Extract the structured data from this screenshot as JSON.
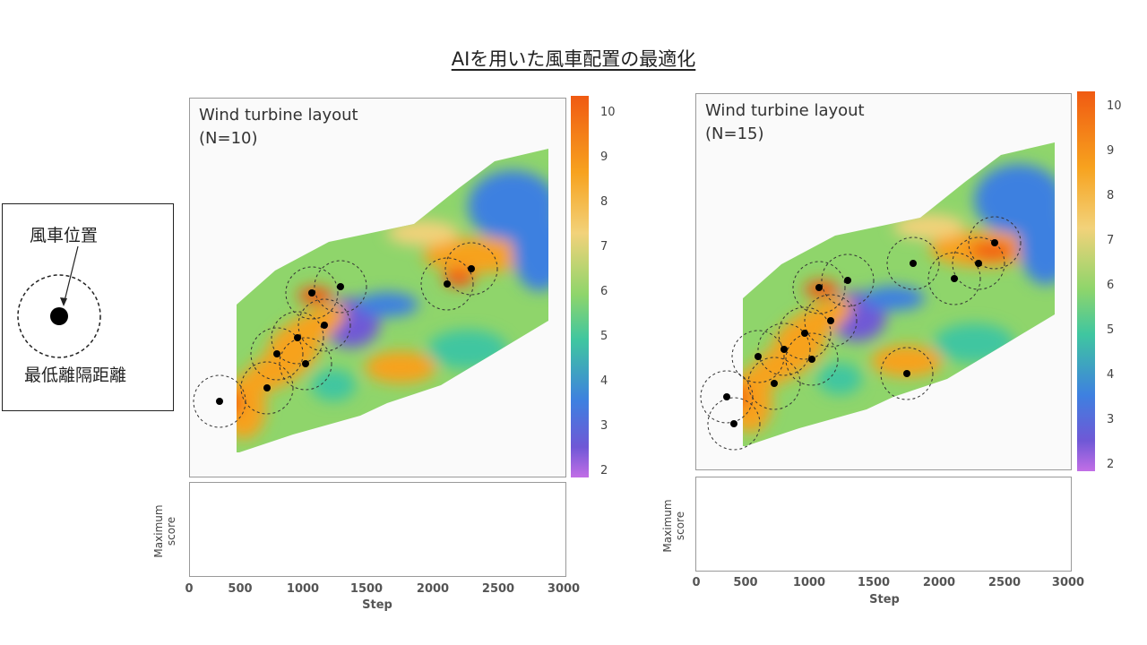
{
  "title": "AIを用いた風車配置の最適化",
  "legend": {
    "turbine_label": "風車位置",
    "distance_label": "最低離隔距離"
  },
  "colors": {
    "high": "#f05a12",
    "mid": "#8fd56b",
    "low": "#6f58d6"
  },
  "colorbar_ticks": [
    "10",
    "9",
    "8",
    "7",
    "6",
    "5",
    "4",
    "3",
    "2"
  ],
  "panels": [
    {
      "map_title": "Wind turbine layout\n(N=10)",
      "score_label": "Maximum\nscore",
      "x_ticks": [
        "0",
        "500",
        "1000",
        "1500",
        "2000",
        "2500",
        "3000"
      ],
      "x_label": "Step"
    },
    {
      "map_title": "Wind turbine layout\n(N=15)",
      "score_label": "Maximum\nscore",
      "x_ticks": [
        "0",
        "500",
        "1000",
        "1500",
        "2000",
        "2500",
        "3000"
      ],
      "x_label": "Step"
    }
  ]
}
